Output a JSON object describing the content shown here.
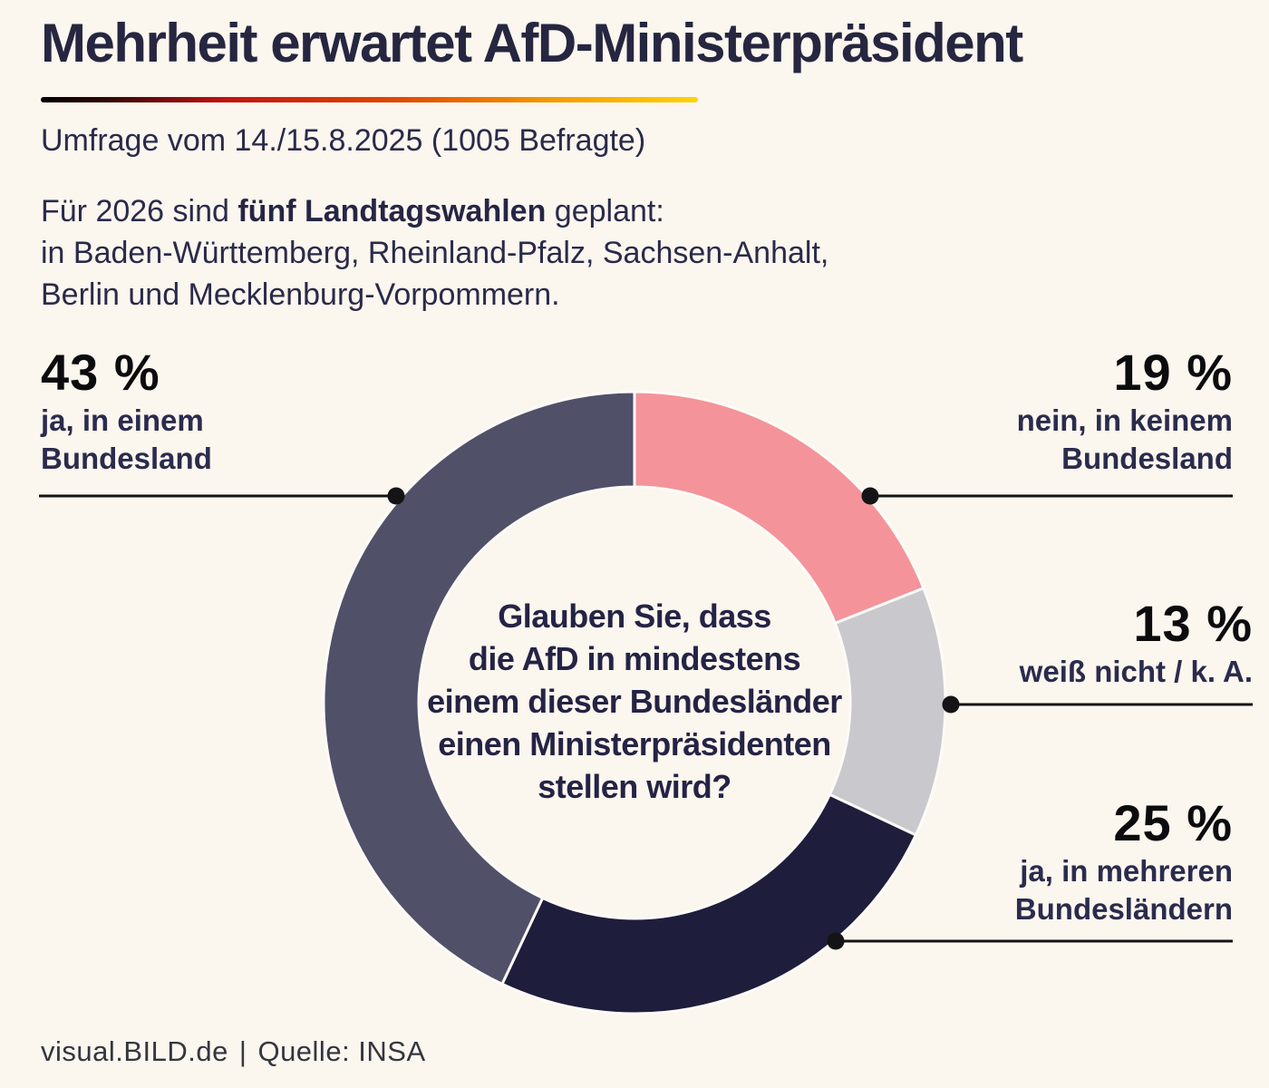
{
  "title": "Mehrheit erwartet AfD-Ministerpräsident",
  "subtitle": "Umfrage vom 14./15.8.2025 (1005 Befragte)",
  "intro": {
    "part1": "Für 2026 sind ",
    "bold": "fünf Landtagswahlen",
    "part2": " geplant:",
    "line2": "in Baden-Württemberg, Rheinland-Pfalz, Sachsen-Anhalt,",
    "line3": "Berlin und Mecklenburg-Vorpommern."
  },
  "footer": {
    "credit": "visual.BILD.de",
    "separator": "|",
    "source": "Quelle: INSA"
  },
  "colors": {
    "background": "#FBF6EE",
    "headline": "#262640",
    "body_text": "#2A2A4A",
    "label_black": "#0C0C0E",
    "leader_line": "#141417",
    "segment_gap": "#FDFBF7",
    "flag_gradient": [
      "#000000",
      "#C21111",
      "#F59B00",
      "#FFD300"
    ]
  },
  "chart_data": {
    "type": "pie",
    "variant": "donut",
    "title": "Glauben Sie, dass die AfD in mindestens einem dieser Bundesländer einen Ministerpräsidenten stellen wird?",
    "question_lines": [
      "Glauben Sie, dass",
      "die AfD in mindestens",
      "einem dieser Bundesländer",
      "einen Ministerpräsidenten",
      "stellen wird?"
    ],
    "start_angle_deg": 0,
    "direction": "clockwise",
    "total": 100,
    "segments": [
      {
        "id": "nein-in-keinem-bundesland",
        "label": "nein, in keinem Bundesland",
        "label_lines": [
          "nein, in keinem",
          "Bundesland"
        ],
        "value": 19,
        "display": "19 %",
        "color": "#F4939A"
      },
      {
        "id": "weiss-nicht-ka",
        "label": "weiß nicht / k. A.",
        "label_lines": [
          "weiß nicht / k. A."
        ],
        "value": 13,
        "display": "13 %",
        "color": "#C9C9CD"
      },
      {
        "id": "ja-in-mehreren-bundeslaendern",
        "label": "ja, in mehreren Bundesländern",
        "label_lines": [
          "ja, in mehreren",
          "Bundesländern"
        ],
        "value": 25,
        "display": "25 %",
        "color": "#1F1D3C"
      },
      {
        "id": "ja-in-einem-bundesland",
        "label": "ja, in einem Bundesland",
        "label_lines": [
          "ja, in einem",
          "Bundesland"
        ],
        "value": 43,
        "display": "43 %",
        "color": "#515069"
      }
    ],
    "legend_position": "callouts"
  }
}
